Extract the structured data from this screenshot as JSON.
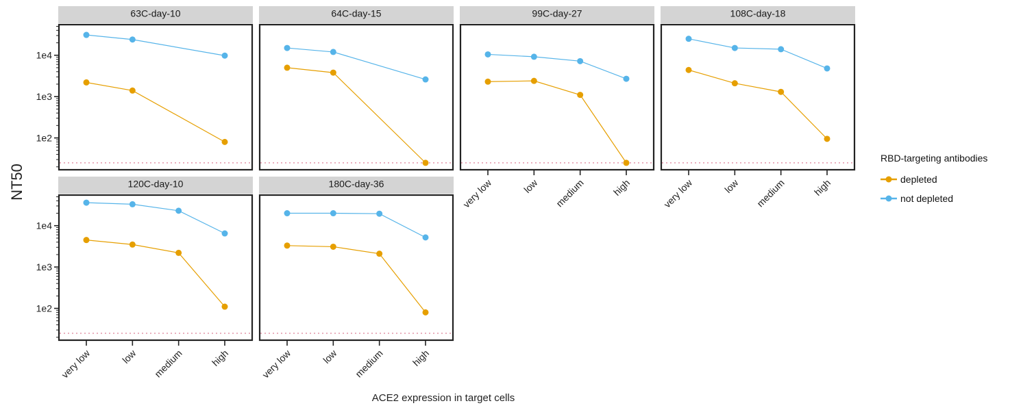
{
  "chart_data": {
    "type": "line",
    "facet_by": "serum",
    "xlabel": "ACE2 expression in target cells",
    "ylabel": "NT50",
    "y_scale": "log10",
    "ylim": [
      17,
      55000
    ],
    "categories": [
      "very low",
      "low",
      "medium",
      "high"
    ],
    "y_ticks": [
      {
        "value": 100,
        "label": "1e2"
      },
      {
        "value": 1000,
        "label": "1e3"
      },
      {
        "value": 10000,
        "label": "1e4"
      }
    ],
    "limit_of_detection": 25,
    "grid": false,
    "legend": {
      "title": "RBD-targeting antibodies",
      "position": "right",
      "entries": [
        "depleted",
        "not depleted"
      ]
    },
    "series_colors": {
      "depleted": "#E69F00",
      "not depleted": "#56B4E9"
    },
    "limit_line_color": "#E7A3B4",
    "facets": [
      {
        "title": "63C-day-10",
        "x": [
          "very low",
          "low",
          "high"
        ],
        "series": [
          {
            "name": "depleted",
            "values": [
              2200,
              1400,
              80
            ]
          },
          {
            "name": "not depleted",
            "values": [
              31000,
              24000,
              9800
            ]
          }
        ]
      },
      {
        "title": "64C-day-15",
        "x": [
          "very low",
          "low",
          "high"
        ],
        "series": [
          {
            "name": "depleted",
            "values": [
              5000,
              3800,
              25
            ]
          },
          {
            "name": "not depleted",
            "values": [
              15000,
              12000,
              2600
            ]
          }
        ]
      },
      {
        "title": "99C-day-27",
        "x": [
          "very low",
          "low",
          "medium",
          "high"
        ],
        "series": [
          {
            "name": "depleted",
            "values": [
              2300,
              2400,
              1100,
              25
            ]
          },
          {
            "name": "not depleted",
            "values": [
              10500,
              9200,
              7200,
              2700
            ]
          }
        ]
      },
      {
        "title": "108C-day-18",
        "x": [
          "very low",
          "low",
          "medium",
          "high"
        ],
        "series": [
          {
            "name": "depleted",
            "values": [
              4400,
              2100,
              1300,
              95
            ]
          },
          {
            "name": "not depleted",
            "values": [
              25000,
              15000,
              14000,
              4800
            ]
          }
        ]
      },
      {
        "title": "120C-day-10",
        "x": [
          "very low",
          "low",
          "medium",
          "high"
        ],
        "series": [
          {
            "name": "depleted",
            "values": [
              4500,
              3500,
              2200,
              110
            ]
          },
          {
            "name": "not depleted",
            "values": [
              36000,
              33000,
              23000,
              6500
            ]
          }
        ]
      },
      {
        "title": "180C-day-36",
        "x": [
          "very low",
          "low",
          "medium",
          "high"
        ],
        "series": [
          {
            "name": "depleted",
            "values": [
              3300,
              3100,
              2100,
              80
            ]
          },
          {
            "name": "not depleted",
            "values": [
              20000,
              20000,
              19500,
              5200
            ]
          }
        ]
      }
    ]
  }
}
